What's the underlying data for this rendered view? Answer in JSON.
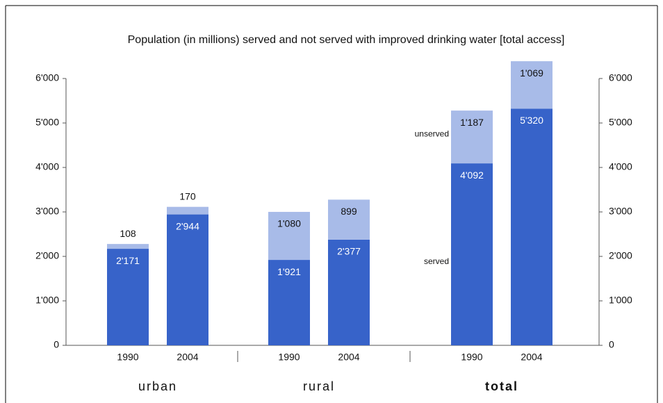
{
  "chart_data": {
    "type": "bar",
    "stacked": true,
    "title": "Population (in millions) served and not served with improved drinking water [total access]",
    "categories": [
      "1990",
      "2004",
      "1990",
      "2004",
      "1990",
      "2004"
    ],
    "groups": [
      "urban",
      "rural",
      "total"
    ],
    "series": [
      {
        "name": "served",
        "color": "#3763c9",
        "values": [
          2171,
          2944,
          1921,
          2377,
          4092,
          5320
        ],
        "value_labels": [
          "2'171",
          "2'944",
          "1'921",
          "2'377",
          "4'092",
          "5'320"
        ]
      },
      {
        "name": "unserved",
        "color": "#a8bbe8",
        "values": [
          108,
          170,
          1080,
          899,
          1187,
          1069
        ],
        "value_labels": [
          "108",
          "170",
          "1'080",
          "899",
          "1'187",
          "1'069"
        ]
      }
    ],
    "ylim": [
      0,
      6000
    ],
    "yticks": [
      0,
      {
        "value": 1000,
        "label": "1'000"
      },
      {
        "value": 2000,
        "label": "2'000"
      },
      {
        "value": 3000,
        "label": "3'000"
      },
      {
        "value": 4000,
        "label": "4'000"
      },
      {
        "value": 5000,
        "label": "5'000"
      },
      {
        "value": 6000,
        "label": "6'000"
      }
    ],
    "y2lim": [
      0,
      6000
    ],
    "y2ticks": [
      0,
      {
        "value": 1000,
        "label": "1'000"
      },
      {
        "value": 2000,
        "label": "2'000"
      },
      {
        "value": 3000,
        "label": "3'000"
      },
      {
        "value": 4000,
        "label": "4'000"
      },
      {
        "value": 5000,
        "label": "5'000"
      },
      {
        "value": 6000,
        "label": "6'000"
      }
    ]
  }
}
